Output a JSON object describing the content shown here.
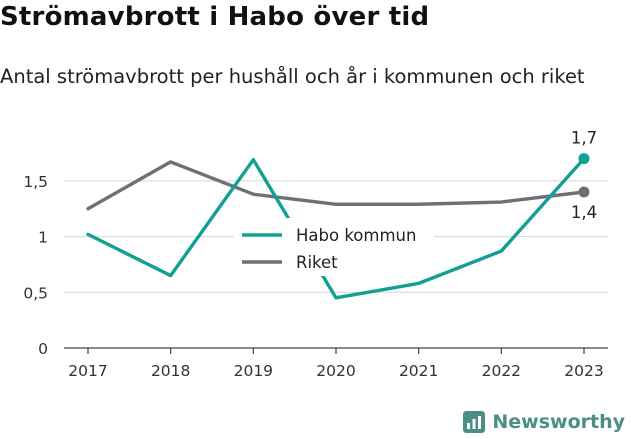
{
  "header": {
    "title": "Strömavbrott i Habo över tid",
    "subtitle": "Antal strömavbrott per hushåll och år i kommunen och riket"
  },
  "brand": {
    "name": "Newsworthy",
    "icon": "bar-chart-logo-icon",
    "color": "#4a8f86"
  },
  "chart_data": {
    "type": "line",
    "x": [
      "2017",
      "2018",
      "2019",
      "2020",
      "2021",
      "2022",
      "2023"
    ],
    "series": [
      {
        "name": "Habo kommun",
        "color": "#12a093",
        "values": [
          1.02,
          0.65,
          1.69,
          0.45,
          0.58,
          0.87,
          1.7
        ]
      },
      {
        "name": "Riket",
        "color": "#6f6f78",
        "values": [
          1.25,
          1.67,
          1.38,
          1.29,
          1.29,
          1.31,
          1.4
        ]
      }
    ],
    "ylim": [
      0,
      1.75
    ],
    "yticks": [
      0,
      0.5,
      1,
      1.5
    ],
    "ytick_labels": [
      "0",
      "0,5",
      "1",
      "1,5"
    ],
    "end_labels": {
      "Habo kommun": "1,7",
      "Riket": "1,4"
    },
    "legend_position": "center",
    "grid": true,
    "xlabel": "",
    "ylabel": ""
  }
}
